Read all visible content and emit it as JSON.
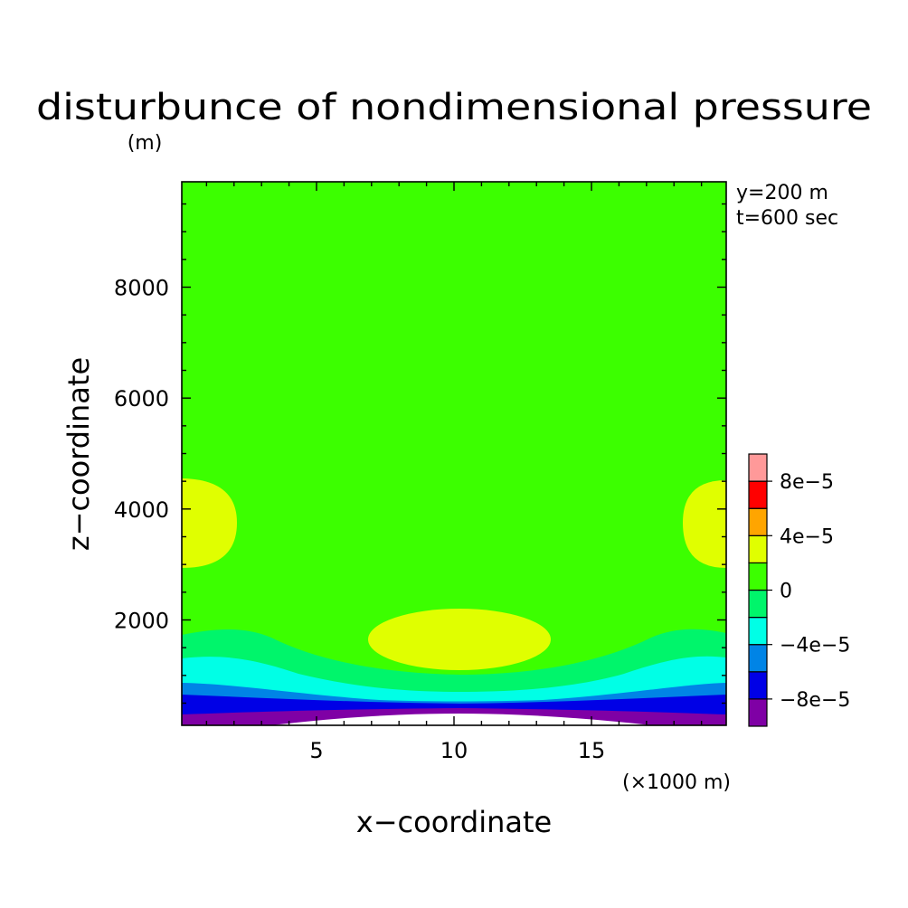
{
  "chart_data": {
    "type": "heatmap",
    "subtype": "filled-contour",
    "title": "disturbunce of nondimensional pressure",
    "xlabel": "x−coordinate",
    "ylabel": "z−coordinate",
    "x_unit": "(×1000 m)",
    "y_unit": "(m)",
    "annotations": [
      "y=200 m",
      "t=600 sec"
    ],
    "xlim": [
      0.1,
      19.9
    ],
    "ylim": [
      100,
      9900
    ],
    "x_ticks": [
      5,
      10,
      15
    ],
    "y_ticks": [
      2000,
      4000,
      6000,
      8000
    ],
    "y_tick_labels": [
      "2000",
      "4000",
      "6000",
      "8000"
    ],
    "grid": false,
    "levels": [
      -0.0001,
      -8e-05,
      -6e-05,
      -4e-05,
      -2e-05,
      0,
      2e-05,
      4e-05,
      6e-05,
      8e-05,
      0.0001
    ],
    "colorbar": {
      "colors": [
        "#7f00a5",
        "#0000e6",
        "#0084e6",
        "#00ffe6",
        "#00f56b",
        "#3cff00",
        "#e0ff00",
        "#ffa500",
        "#ff0000",
        "#ff9999"
      ],
      "tick_labels": [
        "−8e−5",
        "−4e−5",
        "0",
        "4e−5",
        "8e−5"
      ],
      "tick_values": [
        -8e-05,
        -4e-05,
        0,
        4e-05,
        8e-05
      ]
    },
    "regions": [
      {
        "range": [
          0,
          2e-05
        ],
        "color": "#3cff00",
        "description": "background fill, most of domain"
      },
      {
        "range": [
          2e-05,
          4e-05
        ],
        "color": "#e0ff00",
        "description": "lobes near x=0 and x=19.9 around z≈3700 m; oval centered x≈10, z≈1600 m"
      },
      {
        "range": [
          -2e-05,
          0
        ],
        "color": "#00f56b",
        "description": "layer z≈800–1750 m"
      },
      {
        "range": [
          -4e-05,
          -2e-05
        ],
        "color": "#00ffe6",
        "description": "layer z≈600–1250 m"
      },
      {
        "range": [
          -6e-05,
          -4e-05
        ],
        "color": "#0084e6",
        "description": "layer z≈500–750 m"
      },
      {
        "range": [
          -8e-05,
          -6e-05
        ],
        "color": "#0000e6",
        "description": "layer z≈300–550 m"
      },
      {
        "range": [
          -0.0001,
          -8e-05
        ],
        "color": "#7f00a5",
        "description": "bottom layer z<300 m"
      },
      {
        "range": "below",
        "color": "#ffffff",
        "description": "minimum near x≈10, z≈100–200 m"
      }
    ]
  }
}
